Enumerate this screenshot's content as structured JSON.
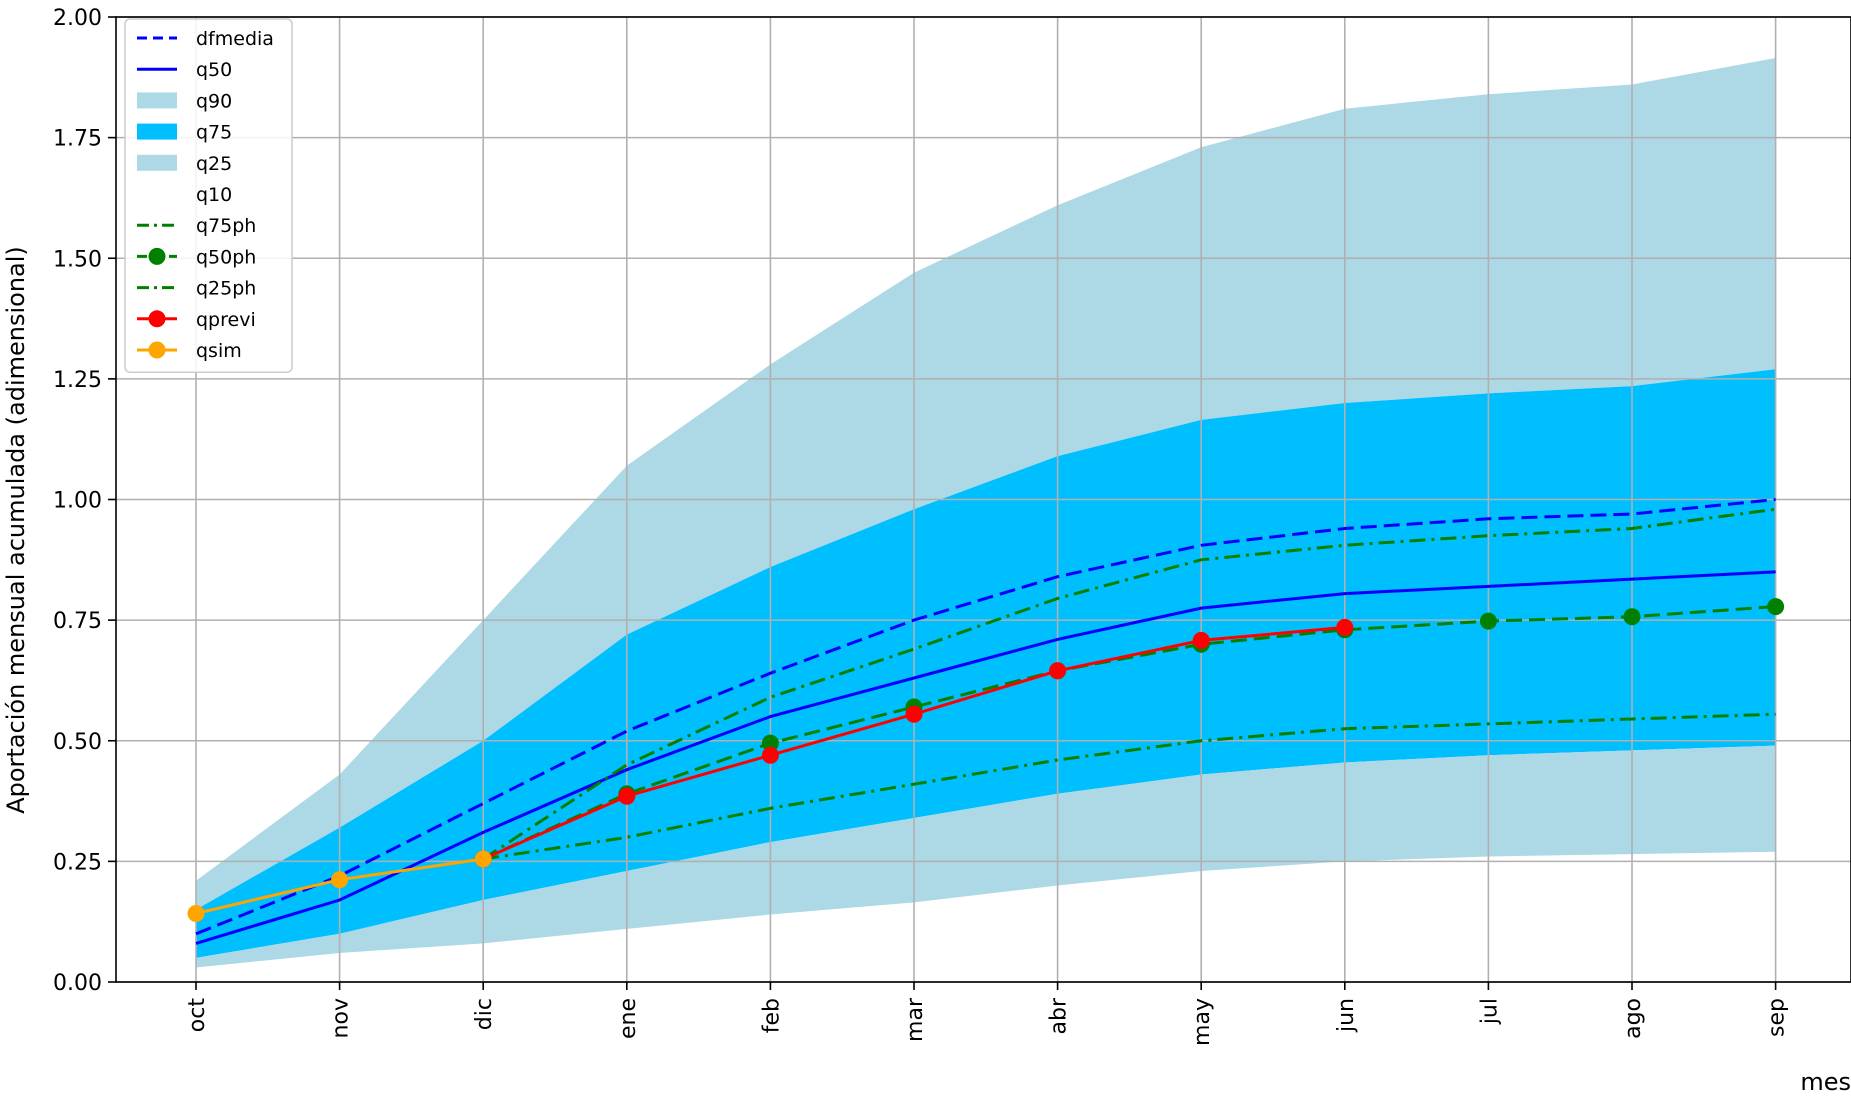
{
  "chart_data": {
    "type": "line",
    "title": "",
    "xlabel": "mes",
    "ylabel": "Aportación mensual acumulada (adimensional)",
    "categories": [
      "oct",
      "nov",
      "dic",
      "ene",
      "feb",
      "mar",
      "abr",
      "may",
      "jun",
      "jul",
      "ago",
      "sep"
    ],
    "ylim": [
      0,
      2.0
    ],
    "yticks": [
      "0.00",
      "0.25",
      "0.50",
      "0.75",
      "1.00",
      "1.25",
      "1.50",
      "1.75",
      "2.00"
    ],
    "grid": true,
    "legend_position": "top-left",
    "colors": {
      "band_light": "#add8e6",
      "band_mid": "#00bfff",
      "dfmedia": "#0000ff",
      "q50": "#0000ff",
      "ph": "#008000",
      "qprevi": "#ff0000",
      "qsim": "#ffa500"
    },
    "bands": [
      {
        "name": "q90",
        "color": "#add8e6",
        "values": [
          0.21,
          0.43,
          0.75,
          1.07,
          1.28,
          1.47,
          1.61,
          1.73,
          1.81,
          1.84,
          1.86,
          1.915
        ]
      },
      {
        "name": "q75",
        "color": "#00bfff",
        "values": [
          0.15,
          0.32,
          0.5,
          0.72,
          0.86,
          0.98,
          1.09,
          1.165,
          1.2,
          1.22,
          1.235,
          1.27
        ]
      },
      {
        "name": "q25",
        "color": "#add8e6",
        "values": [
          0.05,
          0.1,
          0.17,
          0.23,
          0.29,
          0.34,
          0.39,
          0.43,
          0.455,
          0.47,
          0.48,
          0.49
        ]
      },
      {
        "name": "q10",
        "color": "#ffffff",
        "values": [
          0.03,
          0.06,
          0.08,
          0.11,
          0.14,
          0.165,
          0.2,
          0.23,
          0.25,
          0.26,
          0.265,
          0.27
        ]
      }
    ],
    "series": [
      {
        "name": "dfmedia",
        "style": "dashed",
        "color": "#0000ff",
        "marker": false,
        "values": [
          0.1,
          0.22,
          0.37,
          0.52,
          0.64,
          0.75,
          0.84,
          0.905,
          0.94,
          0.96,
          0.97,
          1.0
        ]
      },
      {
        "name": "q50",
        "style": "solid",
        "color": "#0000ff",
        "marker": false,
        "values": [
          0.08,
          0.17,
          0.31,
          0.44,
          0.55,
          0.63,
          0.71,
          0.775,
          0.805,
          0.82,
          0.835,
          0.85
        ]
      },
      {
        "name": "q75ph",
        "style": "dashdot",
        "color": "#008000",
        "marker": false,
        "values": [
          null,
          null,
          0.255,
          0.45,
          0.59,
          0.69,
          0.795,
          0.875,
          0.905,
          0.925,
          0.94,
          0.98
        ]
      },
      {
        "name": "q50ph",
        "style": "dashed",
        "color": "#008000",
        "marker": true,
        "values": [
          null,
          null,
          0.255,
          0.39,
          0.495,
          0.57,
          0.645,
          0.7,
          0.73,
          0.748,
          0.757,
          0.778
        ]
      },
      {
        "name": "q25ph",
        "style": "dashdot",
        "color": "#008000",
        "marker": false,
        "values": [
          null,
          null,
          0.255,
          0.3,
          0.36,
          0.41,
          0.46,
          0.5,
          0.525,
          0.535,
          0.545,
          0.555
        ]
      },
      {
        "name": "qprevi",
        "style": "solid",
        "color": "#ff0000",
        "marker": true,
        "values": [
          null,
          null,
          0.255,
          0.385,
          0.47,
          0.555,
          0.645,
          0.708,
          0.735,
          null,
          null,
          null
        ]
      },
      {
        "name": "qsim",
        "style": "solid",
        "color": "#ffa500",
        "marker": true,
        "values": [
          0.142,
          0.212,
          0.255,
          null,
          null,
          null,
          null,
          null,
          null,
          null,
          null,
          null
        ]
      }
    ],
    "legend": [
      {
        "label": "dfmedia",
        "kind": "line",
        "style": "dashed",
        "color": "#0000ff",
        "marker": false
      },
      {
        "label": "q50",
        "kind": "line",
        "style": "solid",
        "color": "#0000ff",
        "marker": false
      },
      {
        "label": "q90",
        "kind": "patch",
        "color": "#add8e6"
      },
      {
        "label": "q75",
        "kind": "patch",
        "color": "#00bfff"
      },
      {
        "label": "q25",
        "kind": "patch",
        "color": "#add8e6"
      },
      {
        "label": "q10",
        "kind": "patch",
        "color": "#ffffff"
      },
      {
        "label": "q75ph",
        "kind": "line",
        "style": "dashdot",
        "color": "#008000",
        "marker": false
      },
      {
        "label": "q50ph",
        "kind": "line",
        "style": "dashed",
        "color": "#008000",
        "marker": true
      },
      {
        "label": "q25ph",
        "kind": "line",
        "style": "dashdot",
        "color": "#008000",
        "marker": false
      },
      {
        "label": "qprevi",
        "kind": "line",
        "style": "solid",
        "color": "#ff0000",
        "marker": true
      },
      {
        "label": "qsim",
        "kind": "line",
        "style": "solid",
        "color": "#ffa500",
        "marker": true
      }
    ]
  }
}
